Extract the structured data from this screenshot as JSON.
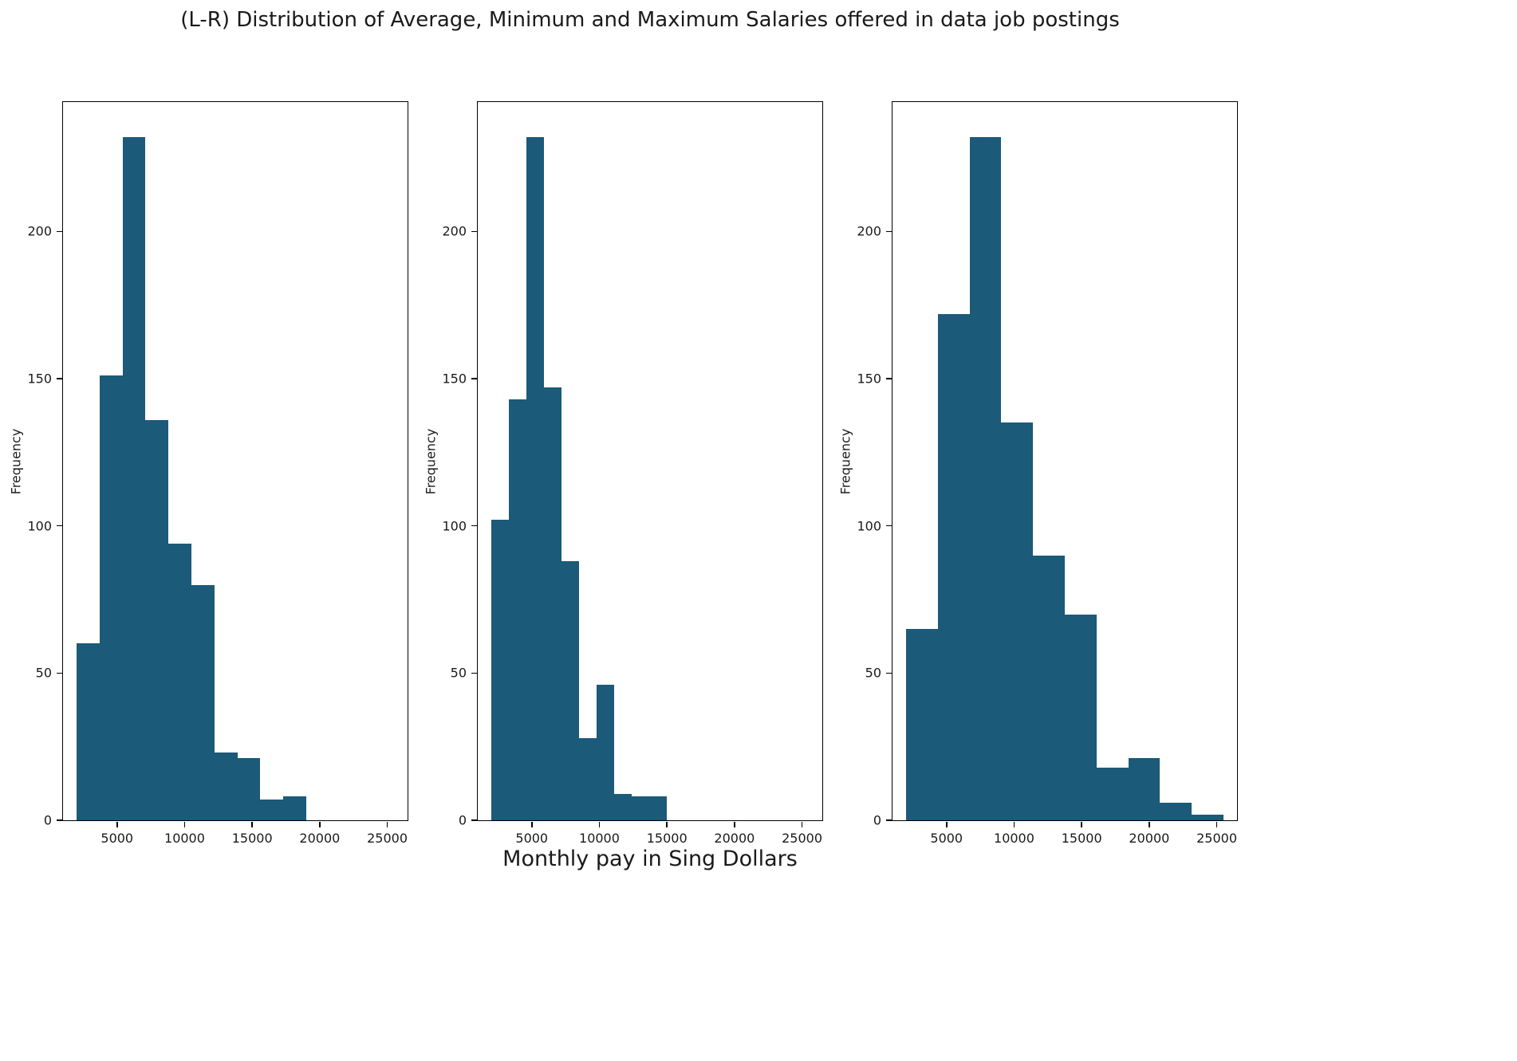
{
  "figure": {
    "title": "(L-R) Distribution of Average, Minimum and Maximum Salaries offered in data job postings",
    "xlabel": "Monthly pay in Sing Dollars",
    "bar_color": "#1b5a78",
    "axes_color": "#000000",
    "background_color": "#ffffff"
  },
  "chart_data": [
    {
      "type": "histogram",
      "name": "average-salary",
      "ylabel": "Frequency",
      "bin_edges": [
        2000,
        3700,
        5400,
        7100,
        8800,
        10500,
        12200,
        13900,
        15600,
        17300,
        19000
      ],
      "frequencies": [
        60,
        151,
        232,
        136,
        94,
        80,
        23,
        21,
        7,
        8
      ],
      "xlim": [
        1000,
        26500
      ],
      "ylim": [
        0,
        244
      ],
      "xticks": [
        5000,
        10000,
        15000,
        20000,
        25000
      ],
      "yticks": [
        0,
        50,
        100,
        150,
        200
      ],
      "grid": false,
      "legend": null
    },
    {
      "type": "histogram",
      "name": "minimum-salary",
      "ylabel": "Frequency",
      "bin_edges": [
        2000,
        3300,
        4600,
        5900,
        7200,
        8500,
        9800,
        11100,
        12400,
        13700,
        15000
      ],
      "frequencies": [
        102,
        143,
        232,
        147,
        88,
        28,
        46,
        9,
        8,
        8
      ],
      "xlim": [
        1000,
        26500
      ],
      "ylim": [
        0,
        244
      ],
      "xticks": [
        5000,
        10000,
        15000,
        20000,
        25000
      ],
      "yticks": [
        0,
        50,
        100,
        150,
        200
      ],
      "grid": false,
      "legend": null
    },
    {
      "type": "histogram",
      "name": "maximum-salary",
      "ylabel": "Frequency",
      "bin_edges": [
        2000,
        4350,
        6700,
        9050,
        11400,
        13750,
        16100,
        18450,
        20800,
        23150,
        25500
      ],
      "frequencies": [
        65,
        172,
        232,
        135,
        90,
        70,
        18,
        21,
        6,
        2
      ],
      "xlim": [
        1000,
        26500
      ],
      "ylim": [
        0,
        244
      ],
      "xticks": [
        5000,
        10000,
        15000,
        20000,
        25000
      ],
      "yticks": [
        0,
        50,
        100,
        150,
        200
      ],
      "grid": false,
      "legend": null
    }
  ]
}
